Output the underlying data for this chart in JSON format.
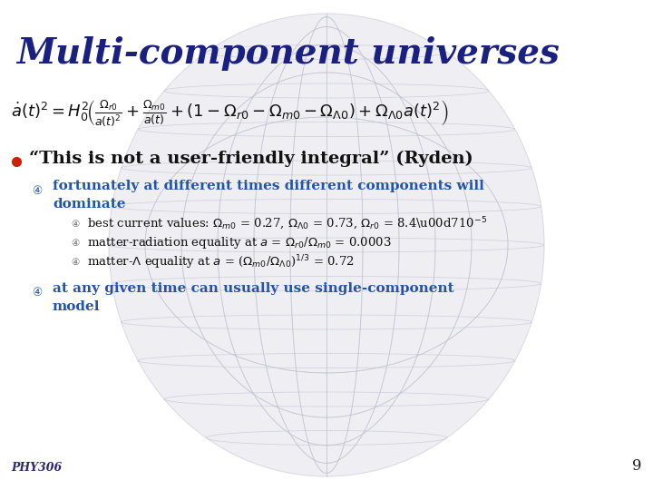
{
  "title": "Multi-component universes",
  "title_color": "#1a2080",
  "title_fontsize": 28,
  "bg_color": "#ffffff",
  "bullet_color": "#cc2200",
  "sub_bullet_color": "#2255aa",
  "sub_bullet_text_color": "#2255aa",
  "subsub_bullet_color": "#555555",
  "subsub_bullet_text_color": "#222222",
  "footer_text": "PHY306",
  "footer_color": "#2a2a7a",
  "page_number": "9",
  "page_number_color": "#222222",
  "globe_color": "#d8d8e4",
  "globe_line_color": "#c0c0d0"
}
